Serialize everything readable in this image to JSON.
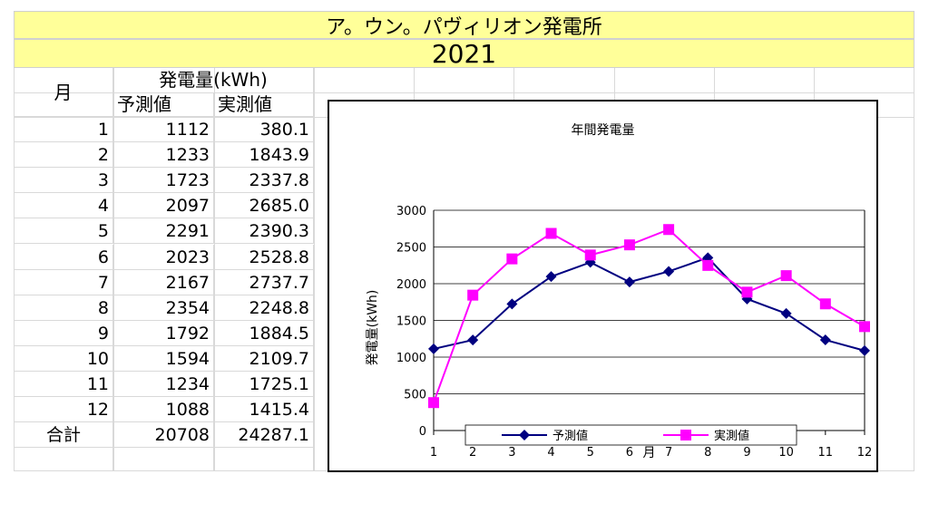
{
  "sheet": {
    "title": "ア。ウン。パヴィリオン発電所",
    "year": "2021",
    "col_month": "月",
    "col_group": "発電量(kWh)",
    "col_predicted": "予測値",
    "col_actual": "実測値",
    "rows": [
      {
        "month": "1",
        "pred": "1112",
        "act": "380.1"
      },
      {
        "month": "2",
        "pred": "1233",
        "act": "1843.9"
      },
      {
        "month": "3",
        "pred": "1723",
        "act": "2337.8"
      },
      {
        "month": "4",
        "pred": "2097",
        "act": "2685.0"
      },
      {
        "month": "5",
        "pred": "2291",
        "act": "2390.3"
      },
      {
        "month": "6",
        "pred": "2023",
        "act": "2528.8"
      },
      {
        "month": "7",
        "pred": "2167",
        "act": "2737.7"
      },
      {
        "month": "8",
        "pred": "2354",
        "act": "2248.8"
      },
      {
        "month": "9",
        "pred": "1792",
        "act": "1884.5"
      },
      {
        "month": "10",
        "pred": "1594",
        "act": "2109.7"
      },
      {
        "month": "11",
        "pred": "1234",
        "act": "1725.1"
      },
      {
        "month": "12",
        "pred": "1088",
        "act": "1415.4"
      }
    ],
    "total_label": "合計",
    "total_pred": "20708",
    "total_act": "24287.1"
  },
  "chart_data": {
    "type": "line",
    "title": "年間発電量",
    "xlabel": "月",
    "ylabel": "発電量(kWh)",
    "categories": [
      "1",
      "2",
      "3",
      "4",
      "5",
      "6",
      "7",
      "8",
      "9",
      "10",
      "11",
      "12"
    ],
    "ylim": [
      0,
      3000
    ],
    "yticks": [
      "0",
      "500",
      "1000",
      "1500",
      "2000",
      "2500",
      "3000"
    ],
    "grid": true,
    "legend_position": "bottom",
    "series": [
      {
        "name": "予測値",
        "color": "#000080",
        "marker": "diamond",
        "values": [
          1112,
          1233,
          1723,
          2097,
          2291,
          2023,
          2167,
          2354,
          1792,
          1594,
          1234,
          1088
        ]
      },
      {
        "name": "実測値",
        "color": "#ff00ff",
        "marker": "square",
        "values": [
          380.1,
          1843.9,
          2337.8,
          2685.0,
          2390.3,
          2528.8,
          2737.7,
          2248.8,
          1884.5,
          2109.7,
          1725.1,
          1415.4
        ]
      }
    ]
  }
}
